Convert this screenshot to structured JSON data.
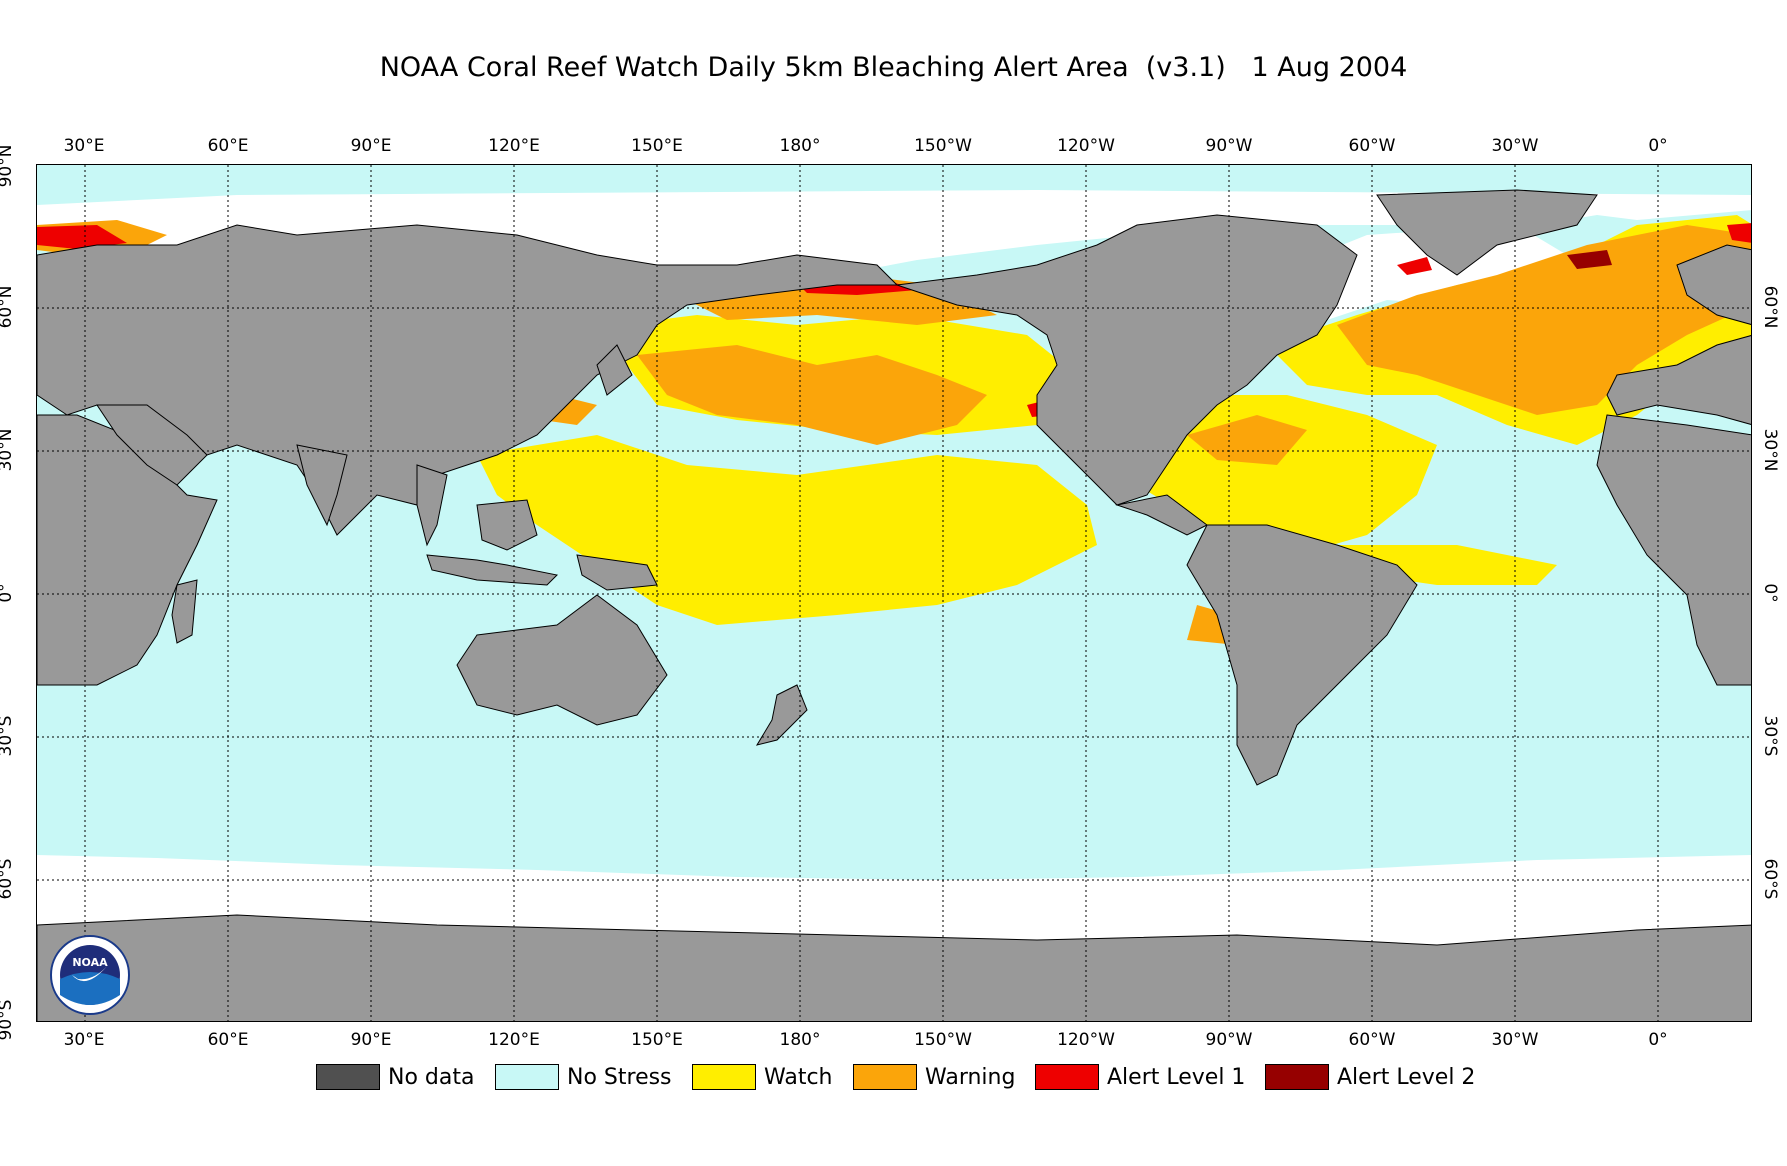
{
  "title": "NOAA Coral Reef Watch Daily 5km Bleaching Alert Area  (v3.1)   1 Aug 2004",
  "axes": {
    "lon_labels": [
      "30°E",
      "60°E",
      "90°E",
      "120°E",
      "150°E",
      "180°",
      "150°W",
      "120°W",
      "90°W",
      "60°W",
      "30°W",
      "0°"
    ],
    "lat_labels_left": [
      "90°N",
      "60°N",
      "30°N",
      "0°",
      "30°S",
      "60°S",
      "90°S"
    ],
    "lat_labels_right": [
      "60°N",
      "30°N",
      "0°",
      "30°S",
      "60°S"
    ]
  },
  "legend": [
    {
      "label": "No data",
      "color": "#505050"
    },
    {
      "label": "No Stress",
      "color": "#c8f8f6"
    },
    {
      "label": "Watch",
      "color": "#ffee00"
    },
    {
      "label": "Warning",
      "color": "#fba50a"
    },
    {
      "label": "Alert Level 1",
      "color": "#ee0000"
    },
    {
      "label": "Alert Level 2",
      "color": "#960000"
    }
  ],
  "colors": {
    "land": "#999999",
    "ice": "#ffffff",
    "ocean_no_stress": "#c8f8f6"
  },
  "logo": {
    "icon": "noaa-logo-icon"
  }
}
